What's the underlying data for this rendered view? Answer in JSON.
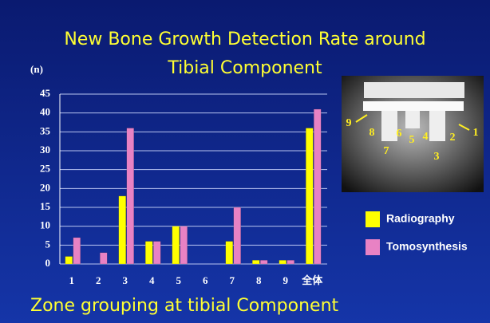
{
  "chart_data": {
    "type": "bar",
    "title_lines": [
      "New Bone Growth Detection Rate around",
      "Tibial Component"
    ],
    "ylabel": "(n)",
    "xlabel": "Zone grouping at tibial Component",
    "categories": [
      "1",
      "2",
      "3",
      "4",
      "5",
      "6",
      "7",
      "8",
      "9",
      "全体"
    ],
    "series": [
      {
        "name": "Radiography",
        "color": "#ffff00",
        "values": [
          2,
          0,
          18,
          6,
          10,
          0,
          6,
          1,
          1,
          36
        ]
      },
      {
        "name": "Tomosynthesis",
        "color": "#e882c4",
        "values": [
          7,
          3,
          36,
          6,
          10,
          0,
          15,
          1,
          1,
          41
        ]
      }
    ],
    "ylim": [
      0,
      45
    ],
    "yticks": [
      0,
      5,
      10,
      15,
      20,
      25,
      30,
      35,
      40,
      45
    ],
    "grid": true,
    "image_labels": [
      "9",
      "8",
      "6",
      "5",
      "4",
      "2",
      "1",
      "7",
      "3"
    ]
  }
}
